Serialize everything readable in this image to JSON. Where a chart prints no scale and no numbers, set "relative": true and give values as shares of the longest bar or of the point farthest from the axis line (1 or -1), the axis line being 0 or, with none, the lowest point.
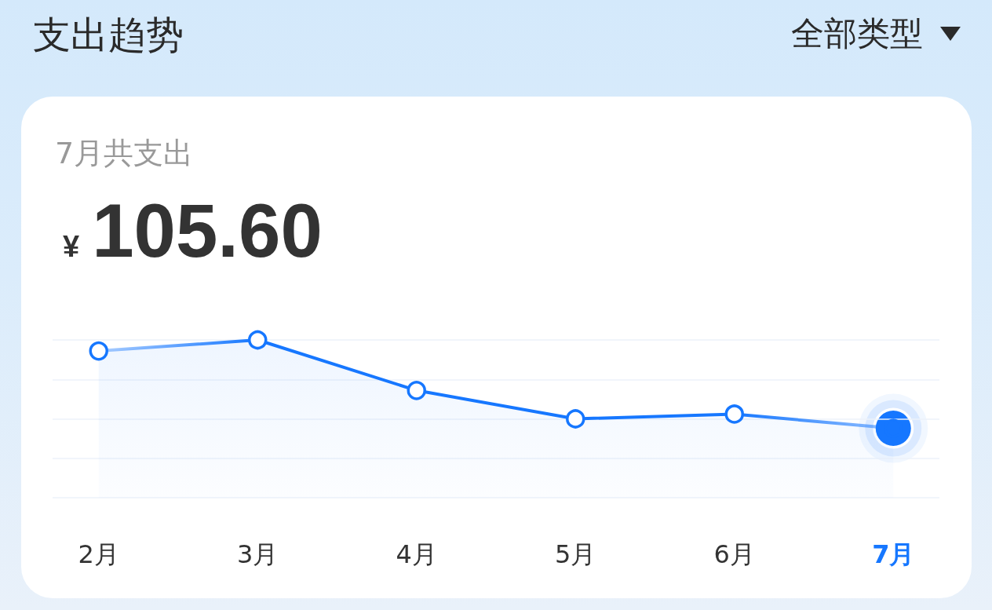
{
  "chart_data": {
    "type": "area",
    "title": "支出趋势",
    "annotations": [
      "全部类型",
      "7月共支出",
      "¥",
      "105.60"
    ],
    "categories": [
      "2月",
      "3月",
      "4月",
      "5月",
      "6月",
      "7月"
    ],
    "values": [
      0.93,
      1,
      0.68,
      0.5,
      0.53,
      0.44
    ],
    "color": "#1677ff",
    "relative": true,
    "grid": "y",
    "marker": "circle"
  }
}
